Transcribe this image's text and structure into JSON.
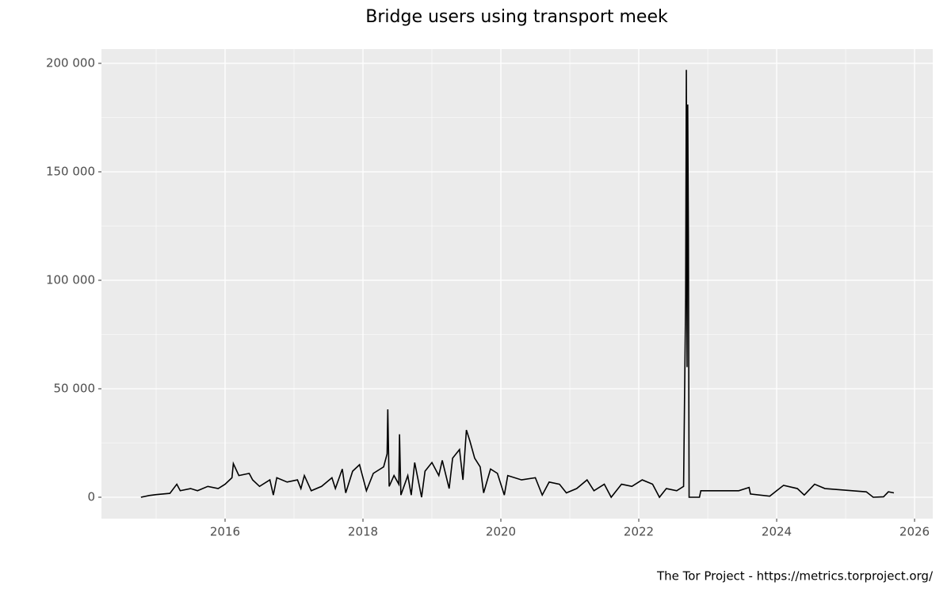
{
  "chart_data": {
    "type": "line",
    "title": "Bridge users using transport meek",
    "caption": "The Tor Project - https://metrics.torproject.org/",
    "xlim": [
      2014.207,
      2026.264
    ],
    "xticks": [
      2016,
      2018,
      2020,
      2022,
      2024,
      2026
    ],
    "ylim": [
      -9854,
      206570
    ],
    "yticks": [
      {
        "value": 0,
        "label": "0"
      },
      {
        "value": 50000,
        "label": "50 000"
      },
      {
        "value": 100000,
        "label": "100 000"
      },
      {
        "value": 150000,
        "label": "150 000"
      },
      {
        "value": 200000,
        "label": "200 000"
      }
    ],
    "grid": true,
    "minor_grid": true,
    "series": [
      {
        "color": "#000000",
        "x": [
          2014.78,
          2014.9,
          2015.0,
          2015.2,
          2015.3,
          2015.35,
          2015.5,
          2015.6,
          2015.75,
          2015.9,
          2016.0,
          2016.1,
          2016.12,
          2016.2,
          2016.35,
          2016.4,
          2016.5,
          2016.65,
          2016.7,
          2016.75,
          2016.9,
          2017.05,
          2017.1,
          2017.15,
          2017.25,
          2017.4,
          2017.55,
          2017.6,
          2017.7,
          2017.75,
          2017.85,
          2017.95,
          2018.0,
          2018.05,
          2018.15,
          2018.3,
          2018.35,
          2018.36,
          2018.38,
          2018.45,
          2018.52,
          2018.53,
          2018.55,
          2018.65,
          2018.7,
          2018.75,
          2018.85,
          2018.9,
          2019.0,
          2019.1,
          2019.15,
          2019.25,
          2019.3,
          2019.4,
          2019.45,
          2019.5,
          2019.55,
          2019.62,
          2019.7,
          2019.75,
          2019.85,
          2019.95,
          2020.05,
          2020.1,
          2020.3,
          2020.5,
          2020.6,
          2020.7,
          2020.85,
          2020.95,
          2021.1,
          2021.25,
          2021.35,
          2021.5,
          2021.6,
          2021.75,
          2021.9,
          2022.05,
          2022.2,
          2022.3,
          2022.4,
          2022.55,
          2022.65,
          2022.68,
          2022.69,
          2022.7,
          2022.71,
          2022.72,
          2022.73,
          2022.88,
          2022.9,
          2023.2,
          2023.45,
          2023.6,
          2023.62,
          2023.9,
          2024.0,
          2024.1,
          2024.3,
          2024.4,
          2024.55,
          2024.7,
          2024.9,
          2025.1,
          2025.3,
          2025.4,
          2025.55,
          2025.62,
          2025.7
        ],
        "values": [
          0,
          800,
          1200,
          1800,
          6000,
          3000,
          4000,
          3000,
          5000,
          4000,
          6000,
          9000,
          15500,
          10000,
          11000,
          8000,
          5000,
          8000,
          1000,
          9000,
          7000,
          8000,
          4000,
          10000,
          3000,
          5000,
          9000,
          4000,
          13000,
          2000,
          12000,
          15000,
          9000,
          3000,
          11000,
          14000,
          20000,
          40500,
          5000,
          10000,
          6000,
          29000,
          1000,
          10000,
          1000,
          16000,
          0,
          12000,
          16000,
          10000,
          17000,
          4000,
          18000,
          22000,
          8000,
          31000,
          26000,
          18000,
          14000,
          2000,
          13000,
          11000,
          1000,
          10000,
          8000,
          9000,
          1000,
          7000,
          6000,
          2000,
          4000,
          8000,
          3000,
          6000,
          0,
          6000,
          5000,
          8000,
          6000,
          0,
          4000,
          3000,
          5000,
          92000,
          197000,
          60000,
          181000,
          120000,
          0,
          0,
          3000,
          3000,
          3000,
          4500,
          1500,
          500,
          3000,
          5500,
          4000,
          1000,
          6000,
          4000,
          3500,
          3000,
          2500,
          0,
          200,
          2500,
          2000
        ]
      }
    ]
  }
}
